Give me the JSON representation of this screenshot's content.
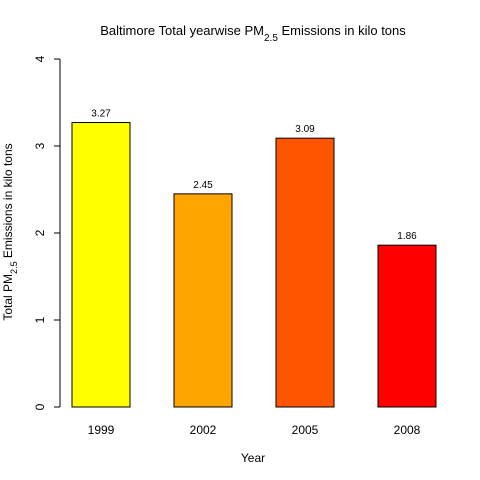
{
  "chart_data": {
    "type": "bar",
    "title": {
      "prefix": "Baltimore Total yearwise PM",
      "subscript": "2.5",
      "suffix": " Emissions in kilo tons"
    },
    "xlabel": "Year",
    "ylabel": {
      "prefix": "Total PM",
      "subscript": "2.5",
      "suffix": " Emissions in kilo tons"
    },
    "categories": [
      "1999",
      "2002",
      "2005",
      "2008"
    ],
    "values": [
      3.27,
      2.45,
      3.09,
      1.86
    ],
    "value_labels": [
      "3.27",
      "2.45",
      "3.09",
      "1.86"
    ],
    "colors": [
      "#FFFF00",
      "#FFA500",
      "#FF5500",
      "#FF0000"
    ],
    "ylim": [
      0,
      4
    ],
    "yticks": [
      "0",
      "1",
      "2",
      "3",
      "4"
    ],
    "grid": false,
    "legend": "none"
  }
}
